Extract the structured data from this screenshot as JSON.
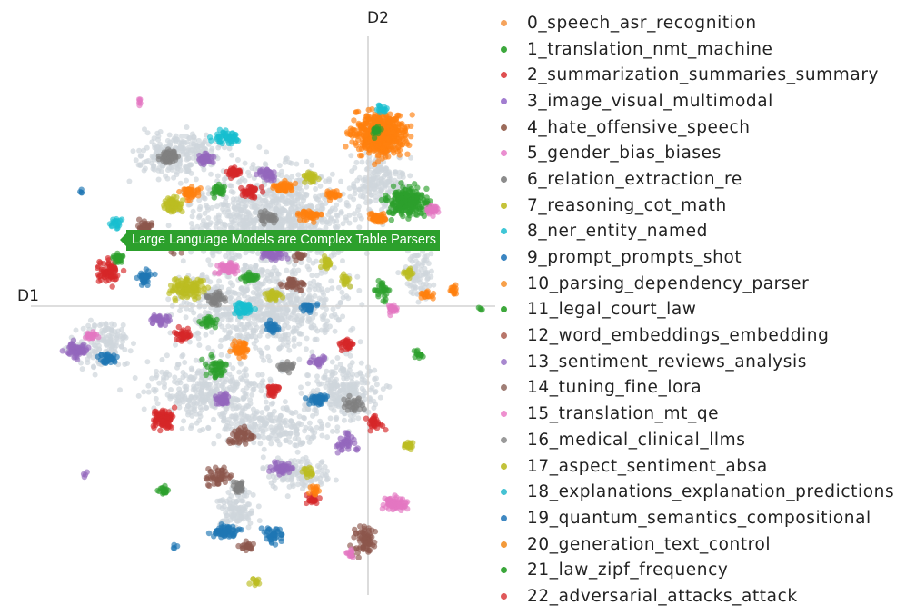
{
  "chart_data": {
    "type": "scatter",
    "axes": {
      "x_label": "D1",
      "y_label": "D2",
      "grid": false
    },
    "legend_position": "right",
    "series": [
      {
        "name": "0_speech_asr_recognition",
        "color": "#f5a35c"
      },
      {
        "name": "1_translation_nmt_machine",
        "color": "#3da83d"
      },
      {
        "name": "2_summarization_summaries_summary",
        "color": "#df4f50"
      },
      {
        "name": "3_image_visual_multimodal",
        "color": "#a27dd0"
      },
      {
        "name": "4_hate_offensive_speech",
        "color": "#9c6b5b"
      },
      {
        "name": "5_gender_bias_biases",
        "color": "#ea8ed0"
      },
      {
        "name": "6_relation_extraction_re",
        "color": "#8c8c8c"
      },
      {
        "name": "7_reasoning_cot_math",
        "color": "#c5c33a"
      },
      {
        "name": "8_ner_entity_named",
        "color": "#3fc6d6"
      },
      {
        "name": "9_prompt_prompts_shot",
        "color": "#3b86c2"
      },
      {
        "name": "10_parsing_dependency_parser",
        "color": "#f7a04a"
      },
      {
        "name": "11_legal_court_law",
        "color": "#3ea83c"
      },
      {
        "name": "12_word_embeddings_embedding",
        "color": "#b8766a"
      },
      {
        "name": "13_sentiment_reviews_analysis",
        "color": "#a888cf"
      },
      {
        "name": "14_tuning_fine_lora",
        "color": "#a07e76"
      },
      {
        "name": "15_translation_mt_qe",
        "color": "#ee90cf"
      },
      {
        "name": "16_medical_clinical_llms",
        "color": "#9a9a9a"
      },
      {
        "name": "17_aspect_sentiment_absa",
        "color": "#c2c23b"
      },
      {
        "name": "18_explanations_explanation_predictions",
        "color": "#45c2d3"
      },
      {
        "name": "19_quantum_semantics_compositional",
        "color": "#3f88c2"
      },
      {
        "name": "20_generation_text_control",
        "color": "#f39a3a"
      },
      {
        "name": "21_law_zipf_frequency",
        "color": "#3aa63a"
      },
      {
        "name": "22_adversarial_attacks_attack",
        "color": "#e0595a"
      }
    ],
    "unassigned_color": "#cfd6db",
    "cluster_colors": [
      "#ff7f0e",
      "#2ca02c",
      "#d62728",
      "#9467bd",
      "#8c564b",
      "#e377c2",
      "#7f7f7f",
      "#bcbd22",
      "#17becf",
      "#1f77b4"
    ],
    "hover_label": {
      "text": "Large Language Models are Complex Table Parsers",
      "color": "#2ca02c"
    }
  }
}
